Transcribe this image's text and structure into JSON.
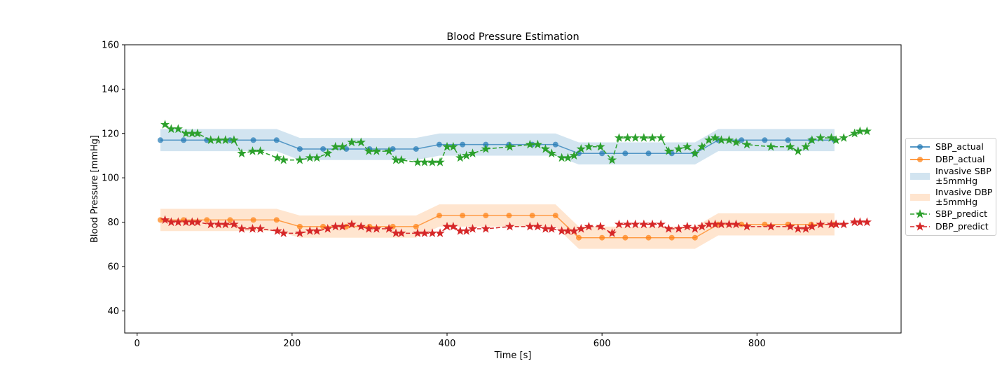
{
  "chart_data": {
    "type": "line",
    "title": "Blood Pressure Estimation",
    "x_label": "Time [s]",
    "y_label": "Blood Pressure [mmHg]",
    "xlim": [
      -16,
      986
    ],
    "ylim": [
      30,
      160
    ],
    "xticks": [
      0,
      200,
      400,
      600,
      800
    ],
    "yticks": [
      40,
      60,
      80,
      100,
      120,
      140,
      160
    ],
    "grid": false,
    "legend": "outside right",
    "series": [
      {
        "name": "SBP_actual",
        "kind": "line",
        "color": "#1f77b4",
        "style": "solid",
        "marker": "circle",
        "x": [
          30,
          60,
          90,
          120,
          150,
          180,
          210,
          240,
          270,
          300,
          330,
          360,
          390,
          420,
          450,
          480,
          510,
          540,
          570,
          600,
          630,
          660,
          690,
          720,
          750,
          780,
          810,
          840,
          870,
          900
        ],
        "values": [
          117,
          117,
          117,
          117,
          117,
          117,
          113,
          113,
          113,
          113,
          113,
          113,
          115,
          115,
          115,
          115,
          115,
          115,
          111,
          111,
          111,
          111,
          111,
          111,
          117,
          117,
          117,
          117,
          117,
          117
        ]
      },
      {
        "name": "DBP_actual",
        "kind": "line",
        "color": "#ff7f0e",
        "style": "solid",
        "marker": "circle",
        "x": [
          30,
          60,
          90,
          120,
          150,
          180,
          210,
          240,
          270,
          300,
          330,
          360,
          390,
          420,
          450,
          480,
          510,
          540,
          570,
          600,
          630,
          660,
          690,
          720,
          750,
          780,
          810,
          840,
          870,
          900
        ],
        "values": [
          81,
          81,
          81,
          81,
          81,
          81,
          78,
          78,
          78,
          78,
          78,
          78,
          83,
          83,
          83,
          83,
          83,
          83,
          73,
          73,
          73,
          73,
          73,
          73,
          79,
          79,
          79,
          79,
          79,
          79
        ]
      },
      {
        "name": "Invasive SBP\n±5mmHg",
        "kind": "band",
        "color": "#1f77b4",
        "x": [
          30,
          60,
          90,
          120,
          150,
          180,
          210,
          240,
          270,
          300,
          330,
          360,
          390,
          420,
          450,
          480,
          510,
          540,
          570,
          600,
          630,
          660,
          690,
          720,
          750,
          780,
          810,
          840,
          870,
          900
        ],
        "lower": [
          112,
          112,
          112,
          112,
          112,
          112,
          108,
          108,
          108,
          108,
          108,
          108,
          110,
          110,
          110,
          110,
          110,
          110,
          106,
          106,
          106,
          106,
          106,
          106,
          112,
          112,
          112,
          112,
          112,
          112
        ],
        "upper": [
          122,
          122,
          122,
          122,
          122,
          122,
          118,
          118,
          118,
          118,
          118,
          118,
          120,
          120,
          120,
          120,
          120,
          120,
          116,
          116,
          116,
          116,
          116,
          116,
          122,
          122,
          122,
          122,
          122,
          122
        ]
      },
      {
        "name": "Invasive DBP\n±5mmHg",
        "kind": "band",
        "color": "#ff7f0e",
        "x": [
          30,
          60,
          90,
          120,
          150,
          180,
          210,
          240,
          270,
          300,
          330,
          360,
          390,
          420,
          450,
          480,
          510,
          540,
          570,
          600,
          630,
          660,
          690,
          720,
          750,
          780,
          810,
          840,
          870,
          900
        ],
        "lower": [
          76,
          76,
          76,
          76,
          76,
          76,
          73,
          73,
          73,
          73,
          73,
          73,
          78,
          78,
          78,
          78,
          78,
          78,
          68,
          68,
          68,
          68,
          68,
          68,
          74,
          74,
          74,
          74,
          74,
          74
        ],
        "upper": [
          86,
          86,
          86,
          86,
          86,
          86,
          83,
          83,
          83,
          83,
          83,
          83,
          88,
          88,
          88,
          88,
          88,
          88,
          78,
          78,
          78,
          78,
          78,
          78,
          84,
          84,
          84,
          84,
          84,
          84
        ]
      },
      {
        "name": "SBP_predict",
        "kind": "line",
        "color": "#2ca02c",
        "style": "dashed",
        "marker": "star",
        "x": [
          36,
          44,
          53,
          63,
          71,
          78,
          95,
          105,
          114,
          125,
          135,
          149,
          159,
          181,
          189,
          210,
          223,
          232,
          246,
          256,
          265,
          277,
          289,
          299,
          309,
          325,
          334,
          341,
          362,
          371,
          381,
          391,
          400,
          408,
          417,
          425,
          433,
          450,
          481,
          507,
          517,
          527,
          535,
          548,
          556,
          564,
          573,
          583,
          598,
          613,
          622,
          633,
          643,
          654,
          665,
          676,
          686,
          699,
          710,
          720,
          729,
          738,
          746,
          754,
          764,
          773,
          787,
          818,
          843,
          853,
          863,
          871,
          882,
          896,
          902,
          912,
          926,
          933,
          942
        ],
        "values": [
          124,
          122,
          122,
          120,
          120,
          120,
          117,
          117,
          117,
          117,
          111,
          112,
          112,
          109,
          108,
          108,
          109,
          109,
          111,
          114,
          114,
          116,
          116,
          112,
          112,
          112,
          108,
          108,
          107,
          107,
          107,
          107,
          114,
          114,
          109,
          110,
          111,
          113,
          114,
          115,
          115,
          113,
          111,
          109,
          109,
          110,
          113,
          114,
          114,
          108,
          118,
          118,
          118,
          118,
          118,
          118,
          112,
          113,
          114,
          111,
          114,
          117,
          118,
          117,
          117,
          116,
          115,
          114,
          114,
          112,
          114,
          117,
          118,
          118,
          117,
          118,
          120,
          121,
          121
        ]
      },
      {
        "name": "DBP_predict",
        "kind": "line",
        "color": "#d62728",
        "style": "dashed",
        "marker": "star",
        "x": [
          36,
          44,
          53,
          63,
          71,
          78,
          95,
          105,
          114,
          125,
          135,
          149,
          159,
          181,
          189,
          210,
          223,
          232,
          246,
          256,
          265,
          277,
          289,
          299,
          309,
          325,
          334,
          341,
          362,
          371,
          381,
          391,
          400,
          408,
          417,
          425,
          433,
          450,
          481,
          507,
          517,
          527,
          535,
          548,
          556,
          564,
          573,
          583,
          598,
          613,
          622,
          633,
          643,
          654,
          665,
          676,
          686,
          699,
          710,
          720,
          729,
          738,
          746,
          754,
          764,
          773,
          787,
          818,
          843,
          853,
          863,
          871,
          882,
          896,
          902,
          912,
          926,
          933,
          942
        ],
        "values": [
          81,
          80,
          80,
          80,
          80,
          80,
          79,
          79,
          79,
          79,
          77,
          77,
          77,
          76,
          75,
          75,
          76,
          76,
          77,
          78,
          78,
          79,
          78,
          77,
          77,
          77,
          75,
          75,
          75,
          75,
          75,
          75,
          78,
          78,
          76,
          76,
          77,
          77,
          78,
          78,
          78,
          77,
          77,
          76,
          76,
          76,
          77,
          78,
          78,
          75,
          79,
          79,
          79,
          79,
          79,
          79,
          77,
          77,
          78,
          77,
          78,
          79,
          79,
          79,
          79,
          79,
          78,
          78,
          78,
          77,
          77,
          78,
          79,
          79,
          79,
          79,
          80,
          80,
          80
        ]
      }
    ]
  }
}
